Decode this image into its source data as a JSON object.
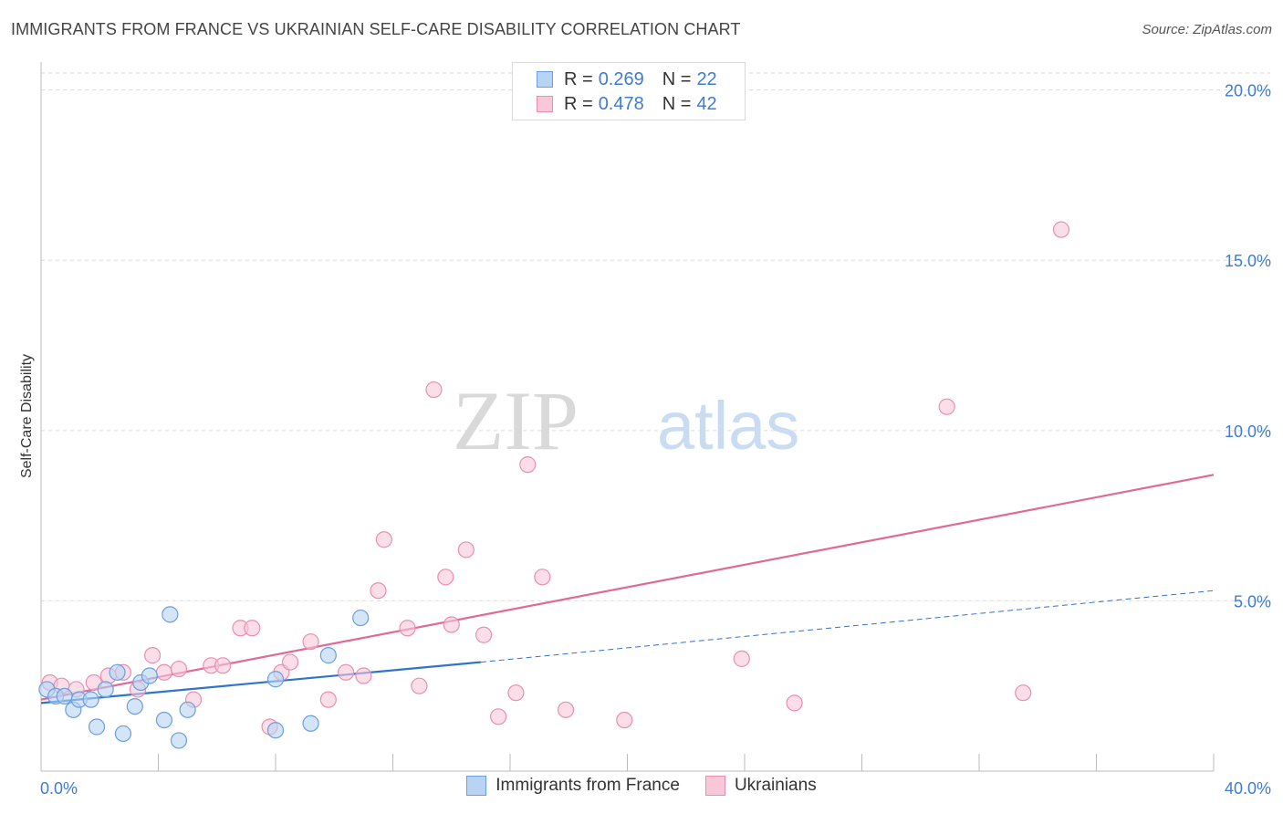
{
  "header": {
    "title": "IMMIGRANTS FROM FRANCE VS UKRAINIAN SELF-CARE DISABILITY CORRELATION CHART",
    "source": "Source: ZipAtlas.com"
  },
  "watermark": {
    "zip": "ZIP",
    "atlas": "atlas"
  },
  "legend": {
    "series": [
      {
        "r_label": "R =",
        "r_value": "0.269",
        "n_label": "N =",
        "n_value": "22"
      },
      {
        "r_label": "R =",
        "r_value": "0.478",
        "n_label": "N =",
        "n_value": "42"
      }
    ]
  },
  "colors": {
    "france_fill": "#b8d3f3",
    "france_stroke": "#6a9fe0",
    "france_line": "#2f73cf",
    "ukr_fill": "#f8c8d8",
    "ukr_stroke": "#ea8fb0",
    "ukr_line": "#e06a95",
    "grid": "#dcdcdc",
    "tick_label": "#3f7bd4"
  },
  "chart_data": {
    "type": "scatter",
    "title": "IMMIGRANTS FROM FRANCE VS UKRAINIAN SELF-CARE DISABILITY CORRELATION CHART",
    "xlabel": "",
    "ylabel": "Self-Care Disability",
    "xlim": [
      0,
      40
    ],
    "ylim": [
      0,
      20.5
    ],
    "x_tick_labels": [
      "0.0%",
      "40.0%"
    ],
    "y_ticks": [
      5,
      10,
      15,
      20
    ],
    "y_tick_labels": [
      "5.0%",
      "10.0%",
      "15.0%",
      "20.0%"
    ],
    "series": [
      {
        "name": "Immigrants from France",
        "points": [
          [
            0.2,
            2.4
          ],
          [
            0.5,
            2.2
          ],
          [
            0.8,
            2.2
          ],
          [
            1.1,
            1.8
          ],
          [
            1.3,
            2.1
          ],
          [
            1.7,
            2.1
          ],
          [
            1.9,
            1.3
          ],
          [
            2.2,
            2.4
          ],
          [
            2.6,
            2.9
          ],
          [
            2.8,
            1.1
          ],
          [
            3.2,
            1.9
          ],
          [
            3.4,
            2.6
          ],
          [
            3.7,
            2.8
          ],
          [
            4.2,
            1.5
          ],
          [
            4.4,
            4.6
          ],
          [
            4.7,
            0.9
          ],
          [
            5.0,
            1.8
          ],
          [
            8.0,
            2.7
          ],
          [
            8.0,
            1.2
          ],
          [
            9.2,
            1.4
          ],
          [
            9.8,
            3.4
          ],
          [
            10.9,
            4.5
          ]
        ],
        "trend": {
          "x": [
            0,
            15
          ],
          "y": [
            2.0,
            3.2
          ],
          "dashed_extension": {
            "x": [
              15,
              40
            ],
            "y": [
              3.2,
              5.3
            ]
          }
        }
      },
      {
        "name": "Ukrainians",
        "points": [
          [
            0.3,
            2.6
          ],
          [
            0.7,
            2.5
          ],
          [
            1.2,
            2.4
          ],
          [
            1.8,
            2.6
          ],
          [
            2.3,
            2.8
          ],
          [
            2.8,
            2.9
          ],
          [
            3.3,
            2.4
          ],
          [
            3.8,
            3.4
          ],
          [
            4.2,
            2.9
          ],
          [
            4.7,
            3.0
          ],
          [
            5.2,
            2.1
          ],
          [
            5.8,
            3.1
          ],
          [
            6.2,
            3.1
          ],
          [
            6.8,
            4.2
          ],
          [
            7.2,
            4.2
          ],
          [
            7.8,
            1.3
          ],
          [
            8.2,
            2.9
          ],
          [
            8.5,
            3.2
          ],
          [
            9.2,
            3.8
          ],
          [
            9.8,
            2.1
          ],
          [
            10.4,
            2.9
          ],
          [
            11.0,
            2.8
          ],
          [
            11.5,
            5.3
          ],
          [
            11.7,
            6.8
          ],
          [
            12.5,
            4.2
          ],
          [
            12.9,
            2.5
          ],
          [
            13.4,
            11.2
          ],
          [
            13.8,
            5.7
          ],
          [
            14.0,
            4.3
          ],
          [
            14.5,
            6.5
          ],
          [
            15.1,
            4.0
          ],
          [
            15.6,
            1.6
          ],
          [
            16.2,
            2.3
          ],
          [
            16.6,
            9.0
          ],
          [
            17.1,
            5.7
          ],
          [
            17.9,
            1.8
          ],
          [
            19.9,
            1.5
          ],
          [
            23.9,
            3.3
          ],
          [
            25.7,
            2.0
          ],
          [
            30.9,
            10.7
          ],
          [
            33.5,
            2.3
          ],
          [
            34.8,
            15.9
          ]
        ],
        "trend": {
          "x": [
            0,
            40
          ],
          "y": [
            2.1,
            8.7
          ]
        }
      }
    ]
  },
  "bottom_legend": {
    "items": [
      {
        "label": "Immigrants from France"
      },
      {
        "label": "Ukrainians"
      }
    ]
  }
}
